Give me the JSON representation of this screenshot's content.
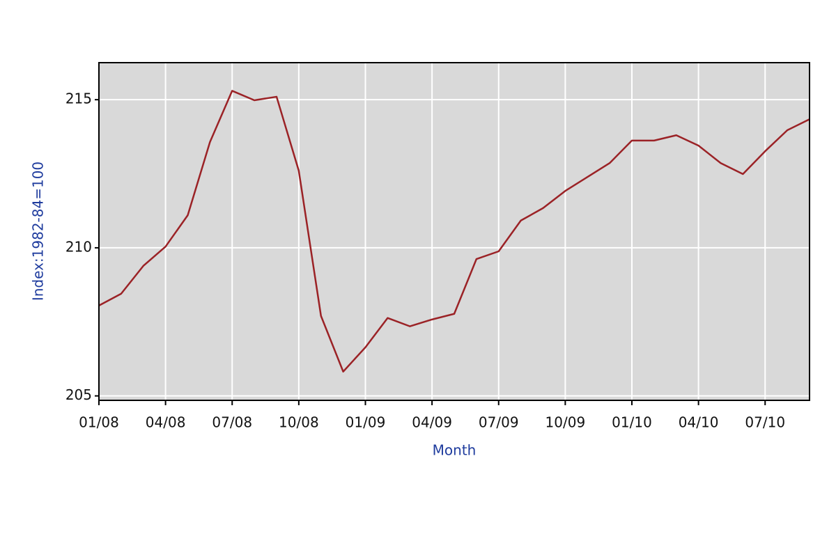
{
  "chart_data": {
    "type": "line",
    "x_label": "Month",
    "y_label": "Index:1982-84=100",
    "categories": [
      "01/08",
      null,
      null,
      "04/08",
      null,
      null,
      "07/08",
      null,
      null,
      "10/08",
      null,
      null,
      "01/09",
      null,
      null,
      "04/09",
      null,
      null,
      "07/09",
      null,
      null,
      "10/09",
      null,
      null,
      "01/10",
      null,
      null,
      "04/10",
      null,
      null,
      "07/10",
      null,
      null
    ],
    "series": [
      {
        "color": "#9b2226",
        "values": [
          208.05,
          208.45,
          209.39,
          210.04,
          211.1,
          213.57,
          215.3,
          214.98,
          215.1,
          212.6,
          207.7,
          205.82,
          206.64,
          207.63,
          207.35,
          207.58,
          207.77,
          209.62,
          209.88,
          210.92,
          211.34,
          211.92,
          212.39,
          212.86,
          213.62,
          213.62,
          213.8,
          213.45,
          212.86,
          212.49,
          213.26,
          213.97,
          214.34
        ]
      }
    ],
    "ylim": [
      204.85,
      216.25
    ],
    "yticks": [
      205,
      210,
      215
    ],
    "grid": true,
    "background": "#d9d9d9",
    "grid_color": "#ffffff",
    "label_color": "#1f3c9e"
  }
}
